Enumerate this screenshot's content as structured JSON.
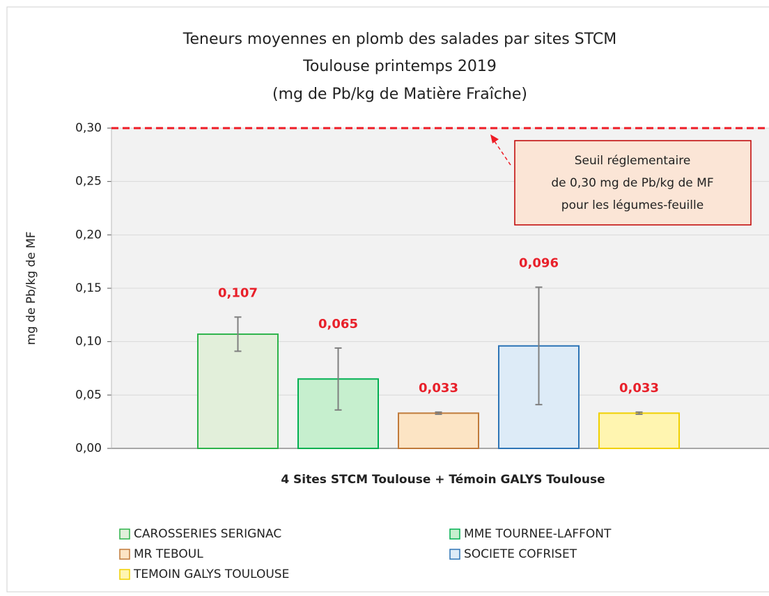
{
  "chart_data": {
    "type": "bar",
    "title": [
      "Teneurs moyennes en plomb des salades par sites STCM",
      "Toulouse printemps 2019",
      "(mg de Pb/kg de Matière Fraîche)"
    ],
    "y_label": "mg de Pb/kg de MF",
    "x_label": "4 Sites STCM Toulouse + Témoin GALYS Toulouse",
    "ylim": [
      0,
      0.3
    ],
    "yticks": [
      {
        "value": 0,
        "label": "0,00"
      },
      {
        "value": 0.05,
        "label": "0,05"
      },
      {
        "value": 0.1,
        "label": "0,10"
      },
      {
        "value": 0.15,
        "label": "0,15"
      },
      {
        "value": 0.2,
        "label": "0,20"
      },
      {
        "value": 0.25,
        "label": "0,25"
      },
      {
        "value": 0.3,
        "label": "0,30"
      }
    ],
    "grid": true,
    "threshold": 0.3,
    "annotation": [
      "Seuil réglementaire",
      "de 0,30 mg de Pb/kg de MF",
      "pour les légumes-feuille"
    ],
    "series": [
      {
        "name": "CAROSSERIES SERIGNAC",
        "color": "#e2efda",
        "edge": "#2db34a",
        "values": [
          0.107
        ],
        "errors": [
          0.016
        ],
        "value_labels": [
          "0,107"
        ]
      },
      {
        "name": "MME TOURNEE-LAFFONT",
        "color": "#c6efce",
        "edge": "#00b050",
        "values": [
          0.065
        ],
        "errors": [
          0.029
        ],
        "value_labels": [
          "0,065"
        ]
      },
      {
        "name": "MR TEBOUL",
        "color": "#fce4c4",
        "edge": "#c07a3a",
        "values": [
          0.033
        ],
        "errors": [
          0.001
        ],
        "value_labels": [
          "0,033"
        ]
      },
      {
        "name": "SOCIETE COFRISET",
        "color": "#ddebf7",
        "edge": "#2e75b6",
        "values": [
          0.096
        ],
        "errors": [
          0.055
        ],
        "value_labels": [
          "0,096"
        ]
      },
      {
        "name": "TEMOIN GALYS TOULOUSE",
        "color": "#fff5b0",
        "edge": "#f0d000",
        "values": [
          0.033
        ],
        "errors": [
          0.001
        ],
        "value_labels": [
          "0,033"
        ]
      }
    ]
  }
}
